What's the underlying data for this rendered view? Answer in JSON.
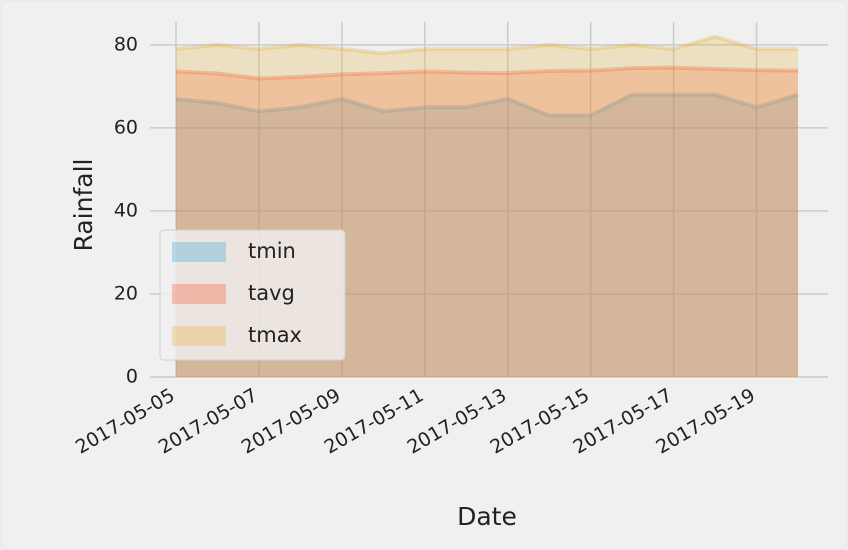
{
  "chart_data": {
    "type": "area",
    "ylabel": "Rainfall",
    "xlabel": "Date",
    "x": [
      "2017-05-05",
      "2017-05-06",
      "2017-05-07",
      "2017-05-08",
      "2017-05-09",
      "2017-05-10",
      "2017-05-11",
      "2017-05-12",
      "2017-05-13",
      "2017-05-14",
      "2017-05-15",
      "2017-05-16",
      "2017-05-17",
      "2017-05-18",
      "2017-05-19",
      "2017-05-20"
    ],
    "series": [
      {
        "name": "tmin",
        "color": "#30a2da",
        "values": [
          67,
          66,
          64,
          65,
          67,
          64,
          65,
          65,
          67,
          63,
          63,
          68,
          68,
          68,
          65,
          68
        ]
      },
      {
        "name": "tavg",
        "color": "#fc4f30",
        "values": [
          73.6,
          73.1,
          71.9,
          72.3,
          72.9,
          73.2,
          73.6,
          73.3,
          73.2,
          73.7,
          73.8,
          74.4,
          74.5,
          74.2,
          73.9,
          73.8
        ]
      },
      {
        "name": "tmax",
        "color": "#e5ae38",
        "values": [
          79,
          80,
          79,
          80,
          79,
          78,
          79,
          79,
          79,
          80,
          79,
          80,
          79,
          82,
          79,
          79
        ]
      }
    ],
    "xlim": [
      "2017-05-05",
      "2017-05-20"
    ],
    "xticks": [
      "2017-05-05",
      "2017-05-07",
      "2017-05-09",
      "2017-05-11",
      "2017-05-13",
      "2017-05-15",
      "2017-05-17",
      "2017-05-19"
    ],
    "ylim": [
      0,
      85.5
    ],
    "yticks": [
      0,
      20,
      40,
      60,
      80
    ],
    "grid": true,
    "legend": "lower left"
  }
}
